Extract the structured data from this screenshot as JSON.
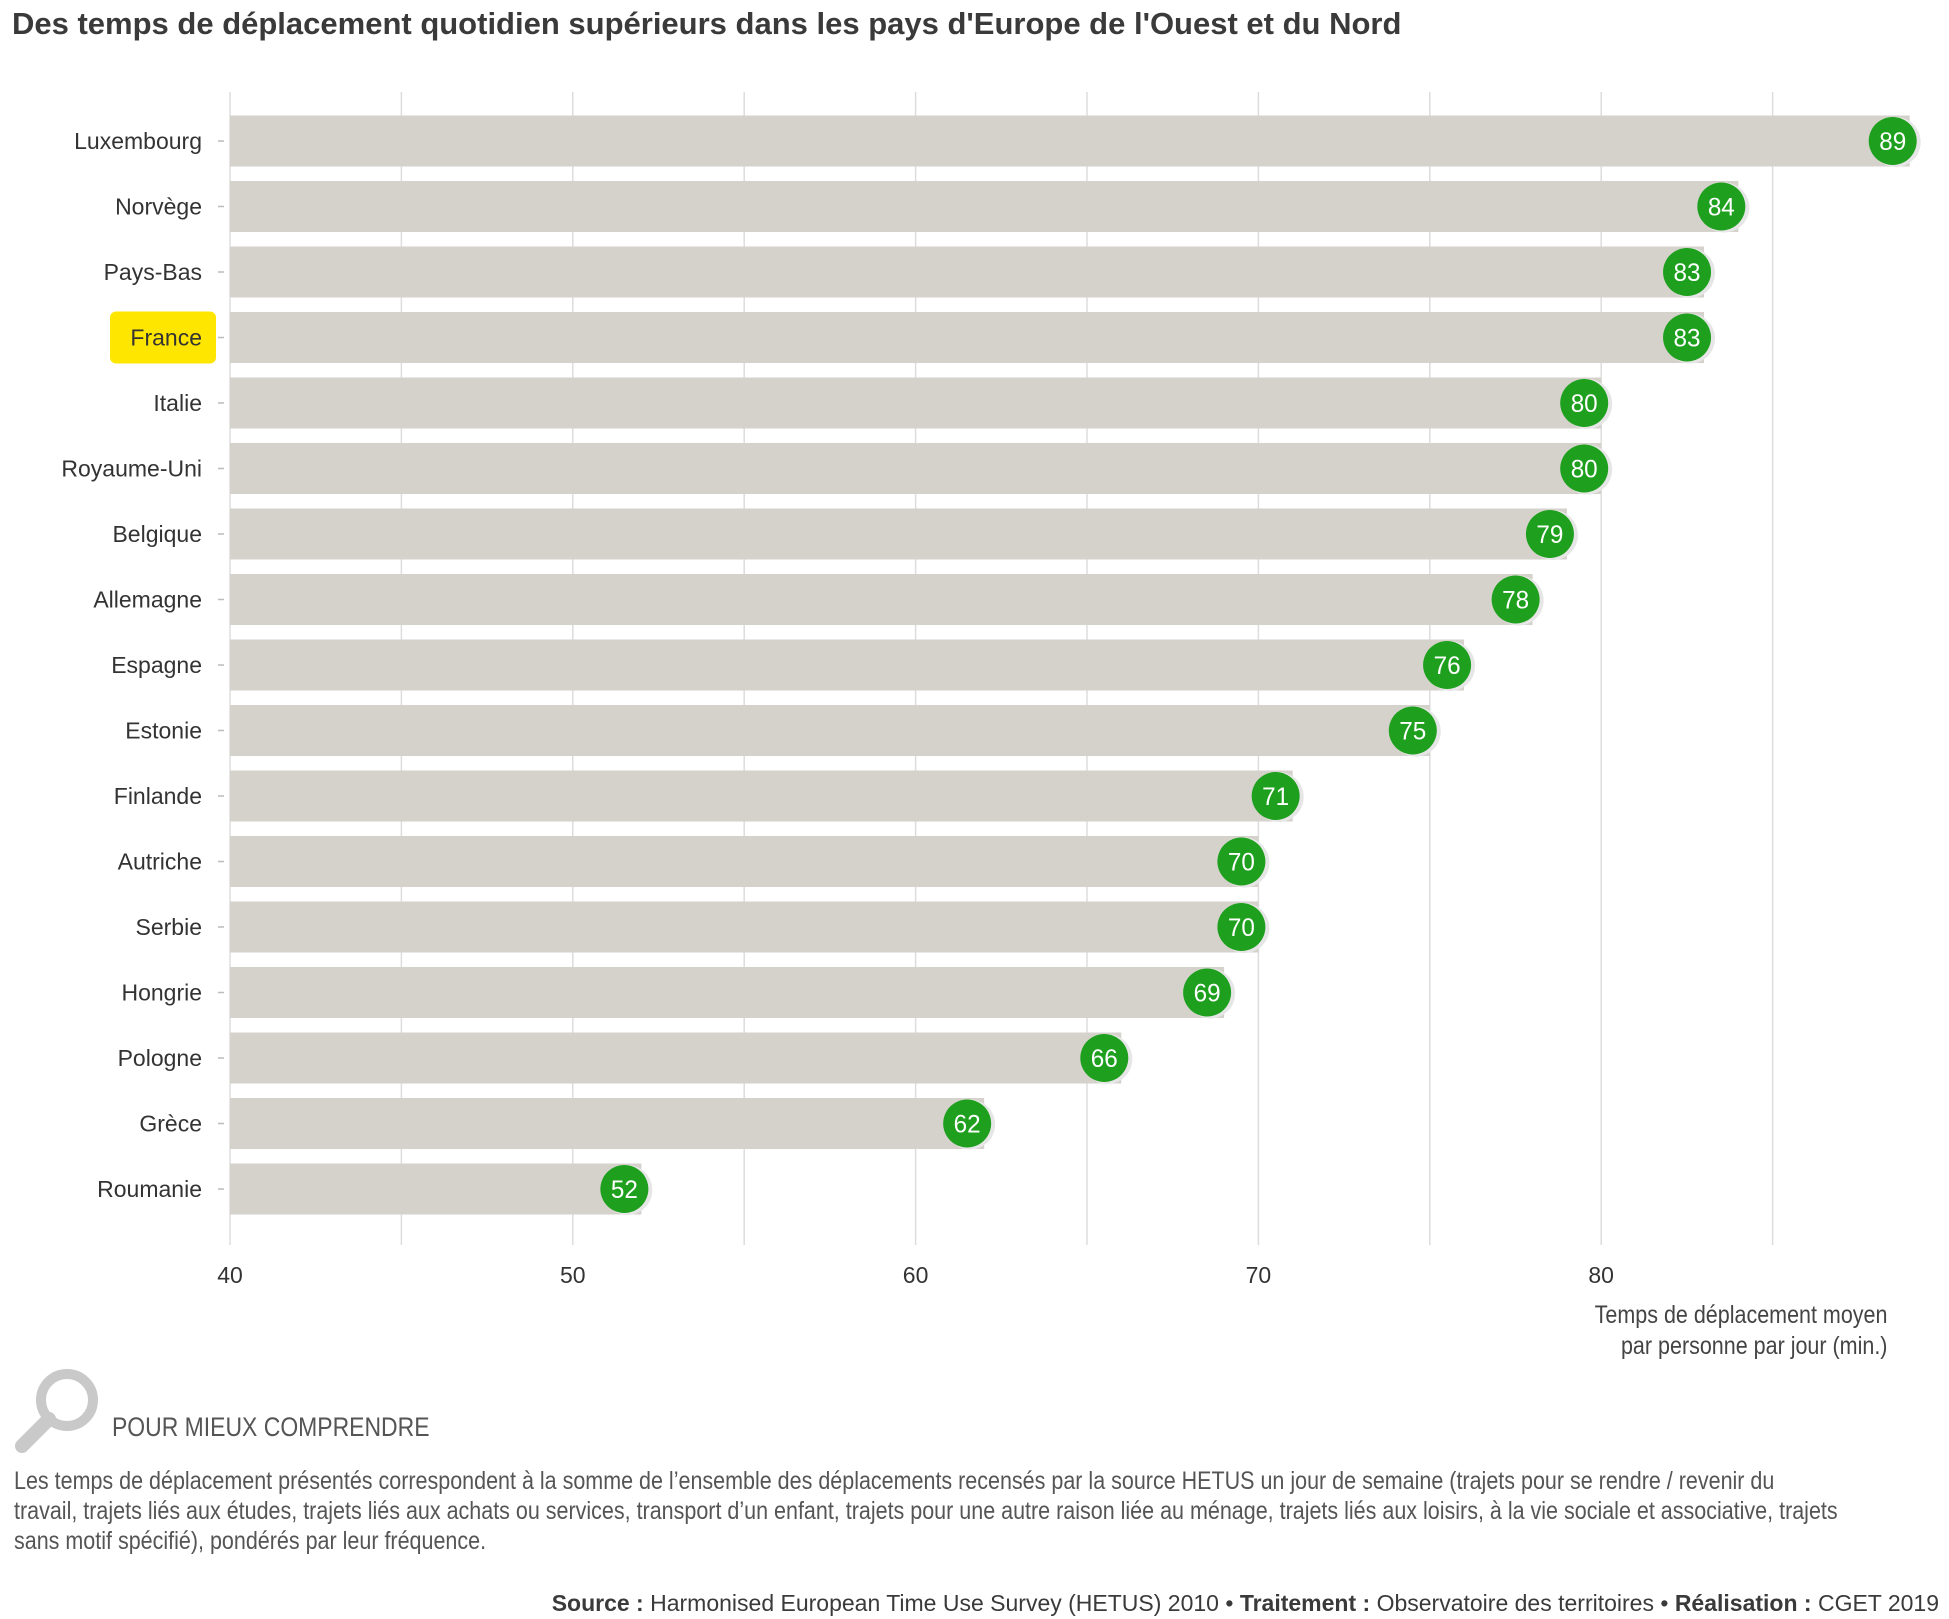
{
  "title": "Des temps de déplacement quotidien supérieurs dans les pays d'Europe de l'Ouest et du Nord",
  "colors": {
    "bar": "#d5d2cc",
    "marker": "#1ea01e",
    "marker_text": "#ffffff",
    "highlight": "#ffe600",
    "grid": "#dddddd",
    "text": "#333333"
  },
  "chart_data": {
    "type": "bar",
    "orientation": "horizontal",
    "categories": [
      "Luxembourg",
      "Norvège",
      "Pays-Bas",
      "France",
      "Italie",
      "Royaume-Uni",
      "Belgique",
      "Allemagne",
      "Espagne",
      "Estonie",
      "Finlande",
      "Autriche",
      "Serbie",
      "Hongrie",
      "Pologne",
      "Grèce",
      "Roumanie"
    ],
    "values": [
      89,
      84,
      83,
      83,
      80,
      80,
      79,
      78,
      76,
      75,
      71,
      70,
      70,
      69,
      66,
      62,
      52
    ],
    "highlighted_category": "France",
    "xlim": [
      40,
      90
    ],
    "xticks": [
      40,
      50,
      60,
      70,
      80
    ],
    "grid": true,
    "data_labels": true,
    "xlabel_lines": [
      "Temps de déplacement moyen",
      "par personne par jour (min.)"
    ]
  },
  "help": {
    "heading": "POUR MIEUX COMPRENDRE",
    "lines": [
      "Les temps de déplacement présentés correspondent à la somme de l’ensemble des déplacements recensés par la source HETUS un jour de semaine (trajets pour se rendre / revenir du",
      "travail, trajets liés aux études, trajets liés aux achats ou services, transport d’un enfant, trajets pour une autre raison liée au ménage, trajets liés aux loisirs, à la vie sociale et associative, trajets",
      "sans motif spécifié), pondérés par leur fréquence."
    ]
  },
  "source": {
    "source_label": "Source :",
    "source_value": "Harmonised European Time Use Survey (HETUS) 2010",
    "treatment_label": "Traitement :",
    "treatment_value": "Observatoire des territoires",
    "realisation_label": "Réalisation :",
    "realisation_value": "CGET 2019",
    "separator": "•"
  }
}
